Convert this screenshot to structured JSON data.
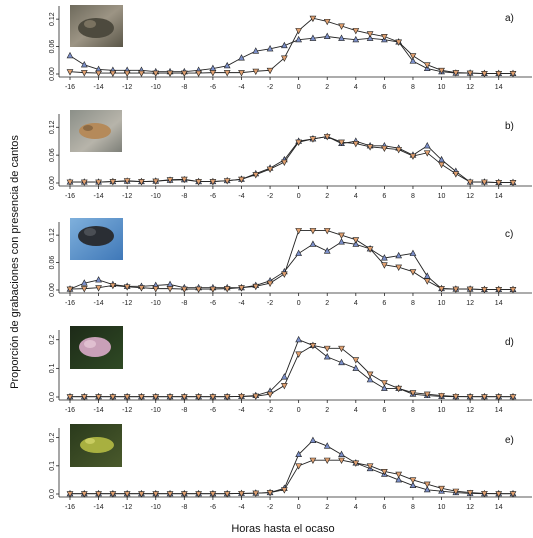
{
  "chart_data": {
    "type": "line",
    "xlabel": "Horas hasta el ocaso",
    "ylabel": "Proporción de grabaciones con presencia de cantos",
    "xlim": [
      -16,
      15
    ],
    "x_ticks": [
      -16,
      -14,
      -12,
      -10,
      -8,
      -6,
      -4,
      -2,
      0,
      2,
      4,
      6,
      8,
      10,
      12,
      14
    ],
    "x": [
      -16,
      -15,
      -14,
      -13,
      -12,
      -11,
      -10,
      -9,
      -8,
      -7,
      -6,
      -5,
      -4,
      -3,
      -2,
      -1,
      0,
      1,
      2,
      3,
      4,
      5,
      6,
      7,
      8,
      9,
      10,
      11,
      12,
      13,
      14,
      15
    ],
    "colors": {
      "series_up": "#7b8fc9",
      "series_down": "#e0a070"
    },
    "panels": [
      {
        "label": "a)",
        "ylim": [
          0,
          0.14
        ],
        "y_ticks": [
          "0.00",
          "0.06",
          "0.12"
        ],
        "y_tick_values": [
          0,
          0.06,
          0.12
        ],
        "series": [
          {
            "marker": "triangle-up",
            "values": [
              0.04,
              0.02,
              0.01,
              0.008,
              0.008,
              0.008,
              0.005,
              0.005,
              0.005,
              0.008,
              0.012,
              0.018,
              0.035,
              0.05,
              0.055,
              0.062,
              0.075,
              0.078,
              0.082,
              0.078,
              0.075,
              0.078,
              0.075,
              0.07,
              0.028,
              0.012,
              0.005,
              0.002,
              0.002,
              0.001,
              0.001,
              0.001
            ]
          },
          {
            "marker": "triangle-down",
            "values": [
              0.005,
              0.003,
              0.002,
              0.002,
              0.002,
              0.002,
              0.002,
              0.002,
              0.002,
              0.002,
              0.003,
              0.003,
              0.003,
              0.006,
              0.008,
              0.035,
              0.095,
              0.122,
              0.115,
              0.105,
              0.095,
              0.088,
              0.082,
              0.07,
              0.04,
              0.02,
              0.008,
              0.003,
              0.002,
              0.001,
              0.001,
              0.001
            ]
          }
        ]
      },
      {
        "label": "b)",
        "ylim": [
          0,
          0.14
        ],
        "y_ticks": [
          "0.00",
          "0.06",
          "0.12"
        ],
        "y_tick_values": [
          0,
          0.06,
          0.12
        ],
        "series": [
          {
            "marker": "triangle-up",
            "values": [
              0.002,
              0.002,
              0.002,
              0.003,
              0.004,
              0.003,
              0.004,
              0.006,
              0.007,
              0.003,
              0.003,
              0.005,
              0.008,
              0.02,
              0.032,
              0.05,
              0.09,
              0.095,
              0.1,
              0.085,
              0.09,
              0.08,
              0.08,
              0.075,
              0.06,
              0.08,
              0.05,
              0.025,
              0.002,
              0.002,
              0.001,
              0.001
            ]
          },
          {
            "marker": "triangle-down",
            "values": [
              0.002,
              0.002,
              0.002,
              0.003,
              0.005,
              0.003,
              0.004,
              0.007,
              0.008,
              0.003,
              0.003,
              0.005,
              0.008,
              0.018,
              0.03,
              0.045,
              0.088,
              0.095,
              0.1,
              0.088,
              0.085,
              0.078,
              0.075,
              0.072,
              0.058,
              0.065,
              0.04,
              0.02,
              0.002,
              0.002,
              0.001,
              0.001
            ]
          }
        ]
      },
      {
        "label": "c)",
        "ylim": [
          0,
          0.14
        ],
        "y_ticks": [
          "0.00",
          "0.06",
          "0.12"
        ],
        "y_tick_values": [
          0,
          0.06,
          0.12
        ],
        "series": [
          {
            "marker": "triangle-up",
            "values": [
              0.002,
              0.015,
              0.022,
              0.012,
              0.008,
              0.008,
              0.01,
              0.012,
              0.005,
              0.005,
              0.005,
              0.005,
              0.005,
              0.01,
              0.02,
              0.04,
              0.08,
              0.1,
              0.085,
              0.105,
              0.1,
              0.09,
              0.07,
              0.075,
              0.08,
              0.03,
              0.003,
              0.002,
              0.002,
              0.001,
              0.001,
              0.001
            ]
          },
          {
            "marker": "triangle-down",
            "values": [
              0.002,
              0.003,
              0.005,
              0.01,
              0.007,
              0.005,
              0.003,
              0.003,
              0.002,
              0.002,
              0.002,
              0.003,
              0.005,
              0.008,
              0.015,
              0.035,
              0.13,
              0.13,
              0.13,
              0.12,
              0.11,
              0.09,
              0.055,
              0.05,
              0.04,
              0.02,
              0.003,
              0.002,
              0.002,
              0.001,
              0.001,
              0.001
            ]
          }
        ]
      },
      {
        "label": "d)",
        "ylim": [
          0,
          0.22
        ],
        "y_ticks": [
          "0.0",
          "0.1",
          "0.2"
        ],
        "y_tick_values": [
          0,
          0.1,
          0.2
        ],
        "series": [
          {
            "marker": "triangle-up",
            "values": [
              0.001,
              0.001,
              0.001,
              0.001,
              0.001,
              0.001,
              0.001,
              0.001,
              0.001,
              0.001,
              0.001,
              0.001,
              0.002,
              0.005,
              0.02,
              0.07,
              0.2,
              0.18,
              0.14,
              0.12,
              0.1,
              0.06,
              0.03,
              0.03,
              0.01,
              0.005,
              0.002,
              0.001,
              0.001,
              0.001,
              0.001,
              0.001
            ]
          },
          {
            "marker": "triangle-down",
            "values": [
              0.001,
              0.001,
              0.001,
              0.001,
              0.001,
              0.001,
              0.001,
              0.001,
              0.001,
              0.001,
              0.001,
              0.001,
              0.002,
              0.003,
              0.01,
              0.04,
              0.15,
              0.18,
              0.17,
              0.17,
              0.13,
              0.08,
              0.05,
              0.03,
              0.015,
              0.01,
              0.005,
              0.002,
              0.001,
              0.001,
              0.001,
              0.001
            ]
          }
        ]
      },
      {
        "label": "e)",
        "ylim": [
          0,
          0.22
        ],
        "y_ticks": [
          "0.0",
          "0.1",
          "0.2"
        ],
        "y_tick_values": [
          0,
          0.1,
          0.2
        ],
        "series": [
          {
            "marker": "triangle-up",
            "values": [
              0.001,
              0.001,
              0.001,
              0.001,
              0.001,
              0.001,
              0.001,
              0.001,
              0.001,
              0.001,
              0.001,
              0.001,
              0.002,
              0.003,
              0.005,
              0.02,
              0.14,
              0.19,
              0.17,
              0.14,
              0.11,
              0.09,
              0.07,
              0.05,
              0.03,
              0.015,
              0.01,
              0.005,
              0.002,
              0.001,
              0.001,
              0.001
            ]
          },
          {
            "marker": "triangle-down",
            "values": [
              0.001,
              0.001,
              0.001,
              0.001,
              0.001,
              0.001,
              0.001,
              0.001,
              0.001,
              0.001,
              0.001,
              0.001,
              0.002,
              0.003,
              0.005,
              0.015,
              0.1,
              0.12,
              0.12,
              0.12,
              0.11,
              0.1,
              0.08,
              0.07,
              0.05,
              0.035,
              0.02,
              0.01,
              0.005,
              0.002,
              0.001,
              0.001
            ]
          }
        ]
      }
    ]
  }
}
